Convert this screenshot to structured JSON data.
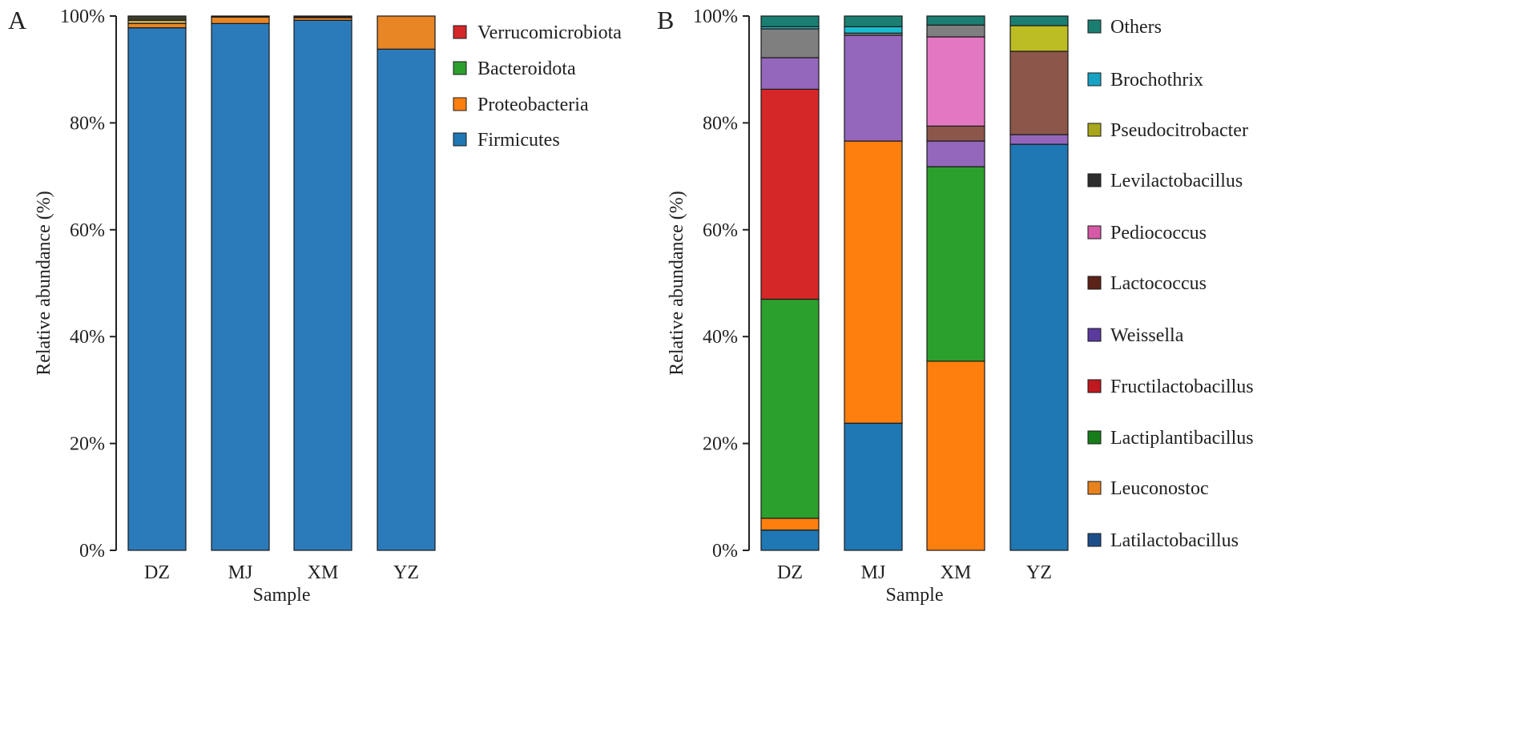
{
  "chart_data": [
    {
      "type": "bar",
      "stacked": true,
      "panel_label": "A",
      "title": "",
      "xlabel": "Sample",
      "ylabel": "Relative abundance (%)",
      "ylim": [
        0,
        100
      ],
      "yticks": [
        "0%",
        "20%",
        "40%",
        "60%",
        "80%",
        "100%"
      ],
      "categories": [
        "DZ",
        "MJ",
        "XM",
        "YZ"
      ],
      "series": [
        {
          "name": "Firmicutes",
          "color": "#1f77b4",
          "values": [
            97.8,
            98.6,
            99.2,
            93.8
          ]
        },
        {
          "name": "Proteobacteria",
          "color": "#ff7f0e",
          "values": [
            0.8,
            1.2,
            0.5,
            6.2
          ]
        },
        {
          "name": "Bacteroidota",
          "color": "#2ca02c",
          "values": [
            0.6,
            0.1,
            0.1,
            0.0
          ]
        },
        {
          "name": "Verrucomicrobiota",
          "color": "#d62728",
          "values": [
            0.8,
            0.1,
            0.2,
            0.0
          ]
        }
      ],
      "segment_colors": [
        "#2b7bba",
        "#e88525",
        "#c7a94a",
        "#3d3f2c"
      ],
      "legend": [
        "Verrucomicrobiota",
        "Bacteroidota",
        "Proteobacteria",
        "Firmicutes"
      ],
      "legend_colors": [
        "#d62728",
        "#2ca02c",
        "#ff7f0e",
        "#1f77b4"
      ]
    },
    {
      "type": "bar",
      "stacked": true,
      "panel_label": "B",
      "title": "",
      "xlabel": "Sample",
      "ylabel": "Relative abundance (%)",
      "ylim": [
        0,
        100
      ],
      "yticks": [
        "0%",
        "20%",
        "40%",
        "60%",
        "80%",
        "100%"
      ],
      "categories": [
        "DZ",
        "MJ",
        "XM",
        "YZ"
      ],
      "series": [
        {
          "name": "Latilactobacillus",
          "color": "#1f77b4",
          "values": [
            3.8,
            23.8,
            0.0,
            76.0
          ]
        },
        {
          "name": "Leuconostoc",
          "color": "#ff7f0e",
          "values": [
            2.2,
            52.8,
            35.4,
            0.0
          ]
        },
        {
          "name": "Lactiplantibacillus",
          "color": "#2ca02c",
          "values": [
            41.0,
            0.0,
            36.4,
            0.0
          ]
        },
        {
          "name": "Fructilactobacillus",
          "color": "#d62728",
          "values": [
            39.3,
            0.0,
            0.0,
            0.0
          ]
        },
        {
          "name": "Weissella",
          "color": "#9467bd",
          "values": [
            5.9,
            19.8,
            4.8,
            1.8
          ]
        },
        {
          "name": "Lactococcus",
          "color": "#8c564b",
          "values": [
            0.0,
            0.0,
            2.8,
            15.6
          ]
        },
        {
          "name": "Pediococcus",
          "color": "#e377c2",
          "values": [
            0.0,
            0.0,
            16.7,
            0.0
          ]
        },
        {
          "name": "Levilactobacillus",
          "color": "#7f7f7f",
          "values": [
            5.4,
            0.4,
            2.2,
            0.0
          ]
        },
        {
          "name": "Pseudocitrobacter",
          "color": "#bcbd22",
          "values": [
            0.0,
            0.0,
            0.0,
            4.8
          ]
        },
        {
          "name": "Brochothrix",
          "color": "#17becf",
          "values": [
            0.4,
            1.2,
            0.0,
            0.0
          ]
        },
        {
          "name": "Others",
          "color": "#1a7f72",
          "values": [
            2.0,
            2.0,
            1.7,
            1.8
          ]
        }
      ],
      "legend": [
        "Others",
        "Brochothrix",
        "Pseudocitrobacter",
        "Levilactobacillus",
        "Pediococcus",
        "Lactococcus",
        "Weissella",
        "Fructilactobacillus",
        "Lactiplantibacillus",
        "Leuconostoc",
        "Latilactobacillus"
      ],
      "legend_colors": [
        "#1a7f72",
        "#17a2c4",
        "#a8a61c",
        "#2e2e2e",
        "#d65aa6",
        "#5c2318",
        "#5b3a9e",
        "#c0181f",
        "#177d1b",
        "#e8821e",
        "#1c4f8a"
      ]
    }
  ]
}
